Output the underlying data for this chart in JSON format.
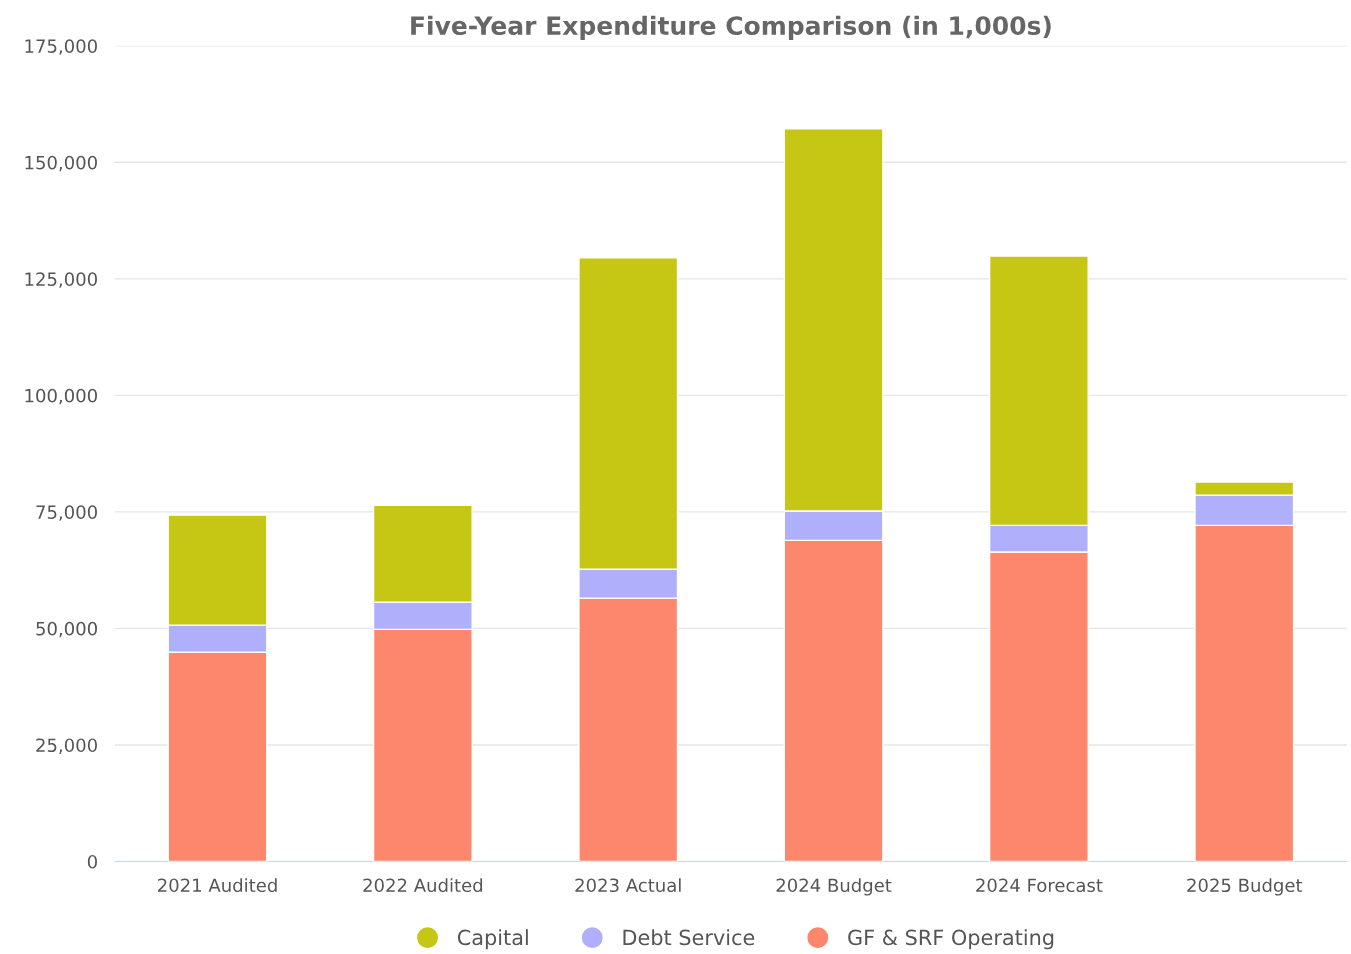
{
  "chart_data": {
    "type": "bar",
    "title": "Five-Year Expenditure Comparison (in 1,000s)",
    "stacked": true,
    "categories": [
      "2021 Audited",
      "2022 Audited",
      "2023 Actual",
      "2024 Budget",
      "2024 Forecast",
      "2025 Budget"
    ],
    "series": [
      {
        "name": "GF & SRF Operating",
        "color": "#fc876c",
        "values": [
          44900,
          49800,
          56500,
          68900,
          66400,
          72100
        ]
      },
      {
        "name": "Debt Service",
        "color": "#afaffc",
        "values": [
          5800,
          5800,
          6200,
          6300,
          5700,
          6500
        ]
      },
      {
        "name": "Capital",
        "color": "#c6c614",
        "values": [
          23600,
          20800,
          66800,
          82000,
          57800,
          2800
        ]
      }
    ],
    "ylim": [
      0,
      175000
    ],
    "yticks": [
      {
        "value": 0,
        "label": "0"
      },
      {
        "value": 25000,
        "label": "25,000"
      },
      {
        "value": 50000,
        "label": "50,000"
      },
      {
        "value": 75000,
        "label": "75,000"
      },
      {
        "value": 100000,
        "label": "100,000"
      },
      {
        "value": 125000,
        "label": "125,000"
      },
      {
        "value": 150000,
        "label": "150,000"
      },
      {
        "value": 175000,
        "label": "175,000"
      }
    ],
    "grid": "y",
    "legend": "bottom"
  }
}
